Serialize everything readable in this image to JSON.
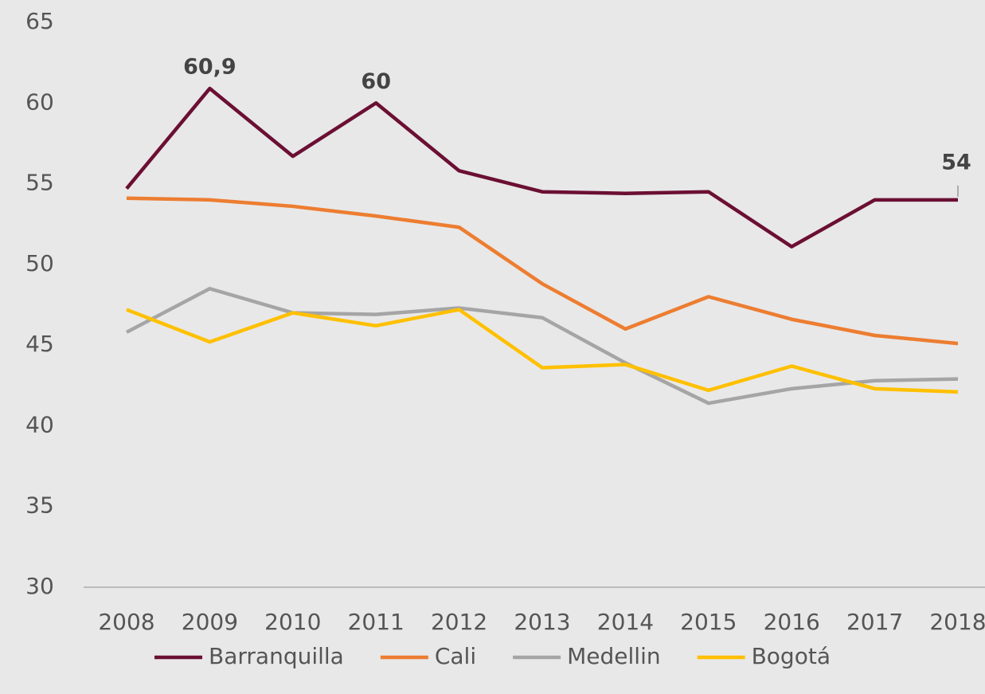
{
  "chart_data": {
    "type": "line",
    "categories": [
      "2008",
      "2009",
      "2010",
      "2011",
      "2012",
      "2013",
      "2014",
      "2015",
      "2016",
      "2017",
      "2018"
    ],
    "series": [
      {
        "name": "Barranquilla",
        "color": "#6b0f33",
        "values": [
          54.7,
          60.9,
          56.7,
          60,
          55.8,
          54.5,
          54.4,
          54.5,
          51.1,
          54,
          54
        ],
        "value_labels": [
          null,
          "60,9",
          null,
          "60",
          null,
          null,
          null,
          null,
          null,
          null,
          "54"
        ]
      },
      {
        "name": "Cali",
        "color": "#ed7d31",
        "values": [
          54.1,
          54.0,
          53.6,
          53.0,
          52.3,
          48.8,
          46.0,
          48.0,
          46.6,
          45.6,
          45.1
        ]
      },
      {
        "name": "Medellin",
        "color": "#a5a5a5",
        "values": [
          45.8,
          48.5,
          47.0,
          46.9,
          47.3,
          46.7,
          43.9,
          41.4,
          42.3,
          42.8,
          42.9
        ]
      },
      {
        "name": "Bogotá",
        "color": "#ffc000",
        "values": [
          47.2,
          45.2,
          47.0,
          46.2,
          47.2,
          43.6,
          43.8,
          42.2,
          43.7,
          42.3,
          42.1
        ]
      }
    ],
    "ylim": [
      30,
      65
    ],
    "yticks": [
      30,
      35,
      40,
      45,
      50,
      55,
      60,
      65
    ],
    "grid": false,
    "legend": "bottom"
  }
}
